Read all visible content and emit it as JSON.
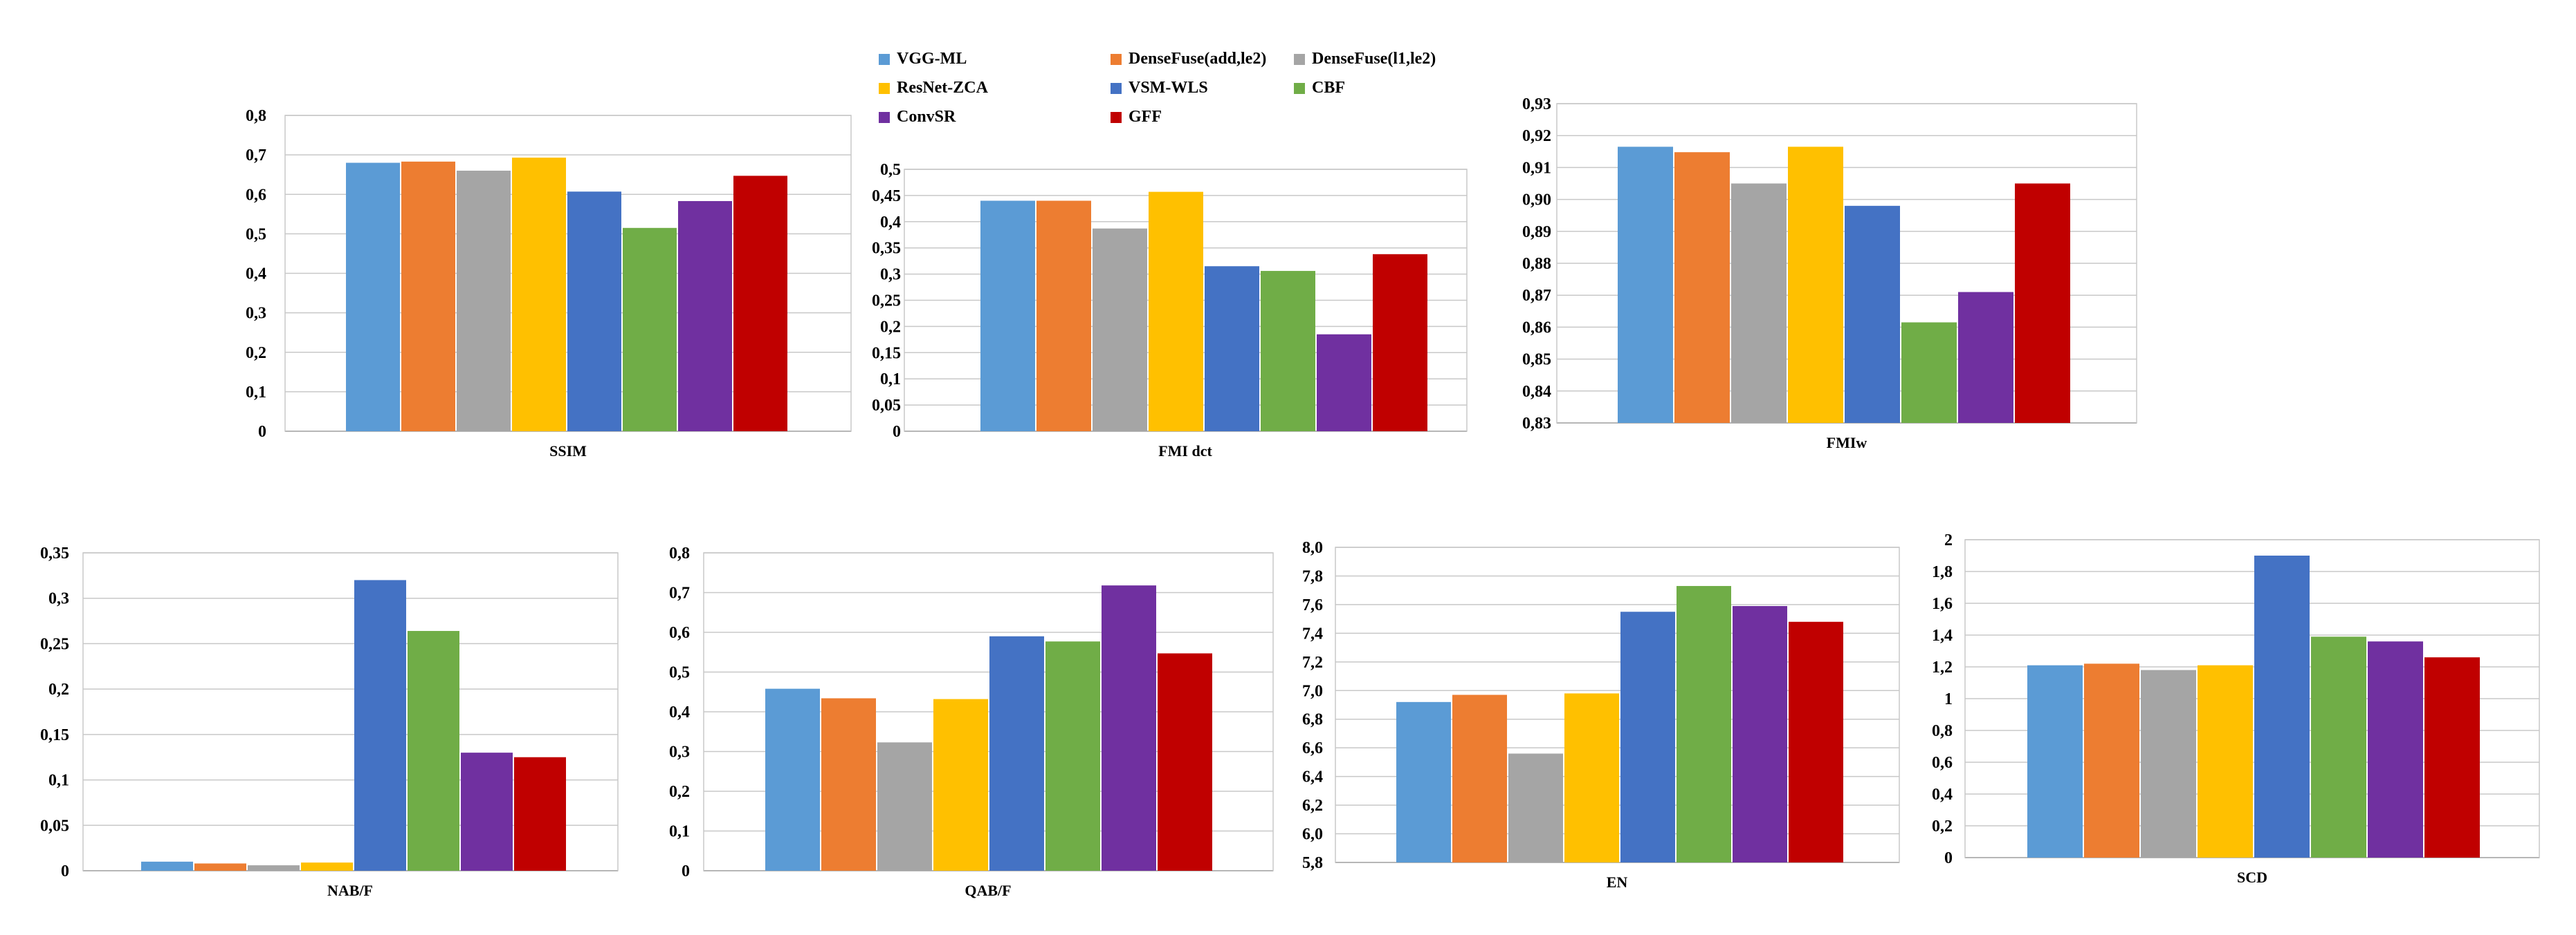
{
  "legend": {
    "items": [
      {
        "name": "VGG-ML",
        "color": "#5B9BD5"
      },
      {
        "name": "DenseFuse(add,le2)",
        "color": "#ED7D31"
      },
      {
        "name": "DenseFuse(l1,le2)",
        "color": "#A5A5A5"
      },
      {
        "name": "ResNet-ZCA",
        "color": "#FFC000"
      },
      {
        "name": "VSM-WLS",
        "color": "#4472C4"
      },
      {
        "name": "CBF",
        "color": "#70AD47"
      },
      {
        "name": "ConvSR",
        "color": "#7030A0"
      },
      {
        "name": "GFF",
        "color": "#C00000"
      }
    ]
  },
  "chart_data": [
    {
      "type": "bar",
      "id": "ssim",
      "xlabel": "SSIM",
      "series_values": [
        0.68,
        0.683,
        0.66,
        0.693,
        0.607,
        0.515,
        0.583,
        0.647
      ],
      "ylim": [
        0,
        0.8
      ],
      "ticks": [
        "0",
        "0,1",
        "0,2",
        "0,3",
        "0,4",
        "0,5",
        "0,6",
        "0,7",
        "0,8"
      ]
    },
    {
      "type": "bar",
      "id": "fmi-dct",
      "xlabel": "FMI dct",
      "series_values": [
        0.44,
        0.44,
        0.387,
        0.457,
        0.315,
        0.306,
        0.185,
        0.338
      ],
      "ylim": [
        0,
        0.5
      ],
      "ticks": [
        "0",
        "0,05",
        "0,1",
        "0,15",
        "0,2",
        "0,25",
        "0,3",
        "0,35",
        "0,4",
        "0,45",
        "0,5"
      ]
    },
    {
      "type": "bar",
      "id": "fmiw",
      "xlabel": "FMIw",
      "series_values": [
        0.9165,
        0.9148,
        0.905,
        0.9165,
        0.898,
        0.8615,
        0.871,
        0.905
      ],
      "ylim": [
        0.83,
        0.93
      ],
      "ticks": [
        "0,83",
        "0,84",
        "0,85",
        "0,86",
        "0,87",
        "0,88",
        "0,89",
        "0,90",
        "0,91",
        "0,92",
        "0,93"
      ]
    },
    {
      "type": "bar",
      "id": "nabf",
      "xlabel": "NAB/F",
      "series_values": [
        0.01,
        0.008,
        0.006,
        0.009,
        0.32,
        0.264,
        0.13,
        0.125
      ],
      "ylim": [
        0,
        0.35
      ],
      "ticks": [
        "0",
        "0,05",
        "0,1",
        "0,15",
        "0,2",
        "0,25",
        "0,3",
        "0,35"
      ]
    },
    {
      "type": "bar",
      "id": "qabf",
      "xlabel": "QAB/F",
      "series_values": [
        0.458,
        0.434,
        0.323,
        0.432,
        0.59,
        0.577,
        0.718,
        0.547
      ],
      "ylim": [
        0,
        0.8
      ],
      "ticks": [
        "0",
        "0,1",
        "0,2",
        "0,3",
        "0,4",
        "0,5",
        "0,6",
        "0,7",
        "0,8"
      ]
    },
    {
      "type": "bar",
      "id": "en",
      "xlabel": "EN",
      "series_values": [
        6.92,
        6.97,
        6.56,
        6.98,
        7.55,
        7.73,
        7.59,
        7.48
      ],
      "ylim": [
        5.8,
        8.0
      ],
      "ticks": [
        "5,8",
        "6,0",
        "6,2",
        "6,4",
        "6,6",
        "6,8",
        "7,0",
        "7,2",
        "7,4",
        "7,6",
        "7,8",
        "8,0"
      ]
    },
    {
      "type": "bar",
      "id": "scd",
      "xlabel": "SCD",
      "series_values": [
        1.21,
        1.22,
        1.18,
        1.21,
        1.9,
        1.39,
        1.36,
        1.26
      ],
      "ylim": [
        0,
        2.0
      ],
      "ticks": [
        "0",
        "0,2",
        "0,4",
        "0,6",
        "0,8",
        "1",
        "1,2",
        "1,4",
        "1,6",
        "1,8",
        "2"
      ]
    }
  ]
}
